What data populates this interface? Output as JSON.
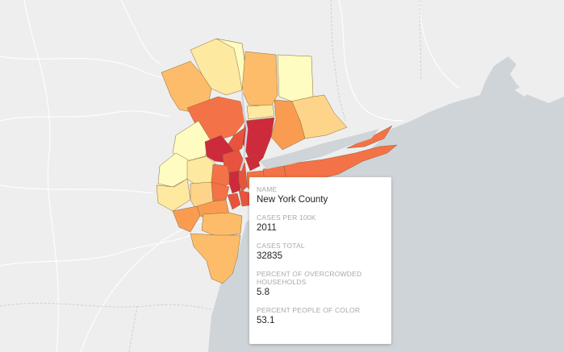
{
  "map": {
    "choropleth_colors": [
      "#fefcc0",
      "#fee9a0",
      "#fdd48a",
      "#fcbc6a",
      "#f99c51",
      "#f47247",
      "#e8533f",
      "#cd2a3c"
    ],
    "ocean_color": "#cfd4d8",
    "land_color": "#eeeeee",
    "road_color": "#ffffff"
  },
  "popup": {
    "fields": [
      {
        "label": "NAME",
        "value": "New York County"
      },
      {
        "label": "CASES PER 100K",
        "value": "2011"
      },
      {
        "label": "CASES TOTAL",
        "value": "32835"
      },
      {
        "label": "PERCENT OF OVERCROWDED HOUSEHOLDS",
        "value": "5.8"
      },
      {
        "label": "PERCENT PEOPLE OF COLOR",
        "value": "53.1"
      }
    ]
  }
}
